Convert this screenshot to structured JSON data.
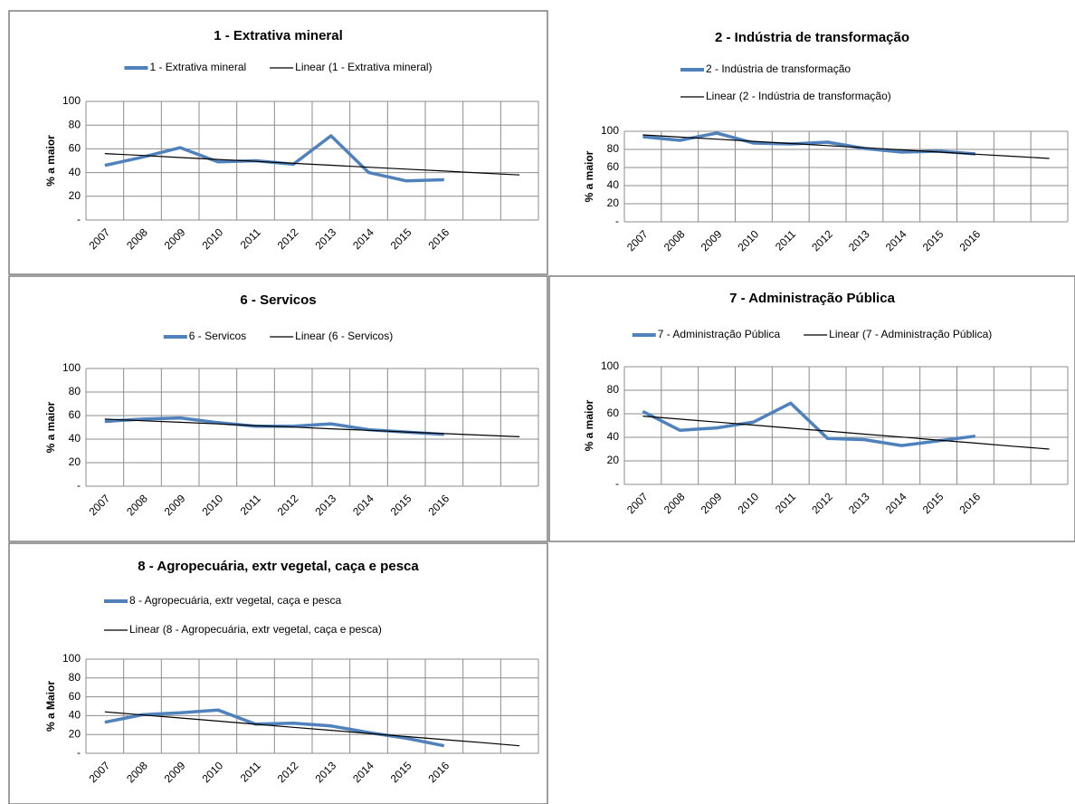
{
  "chart_data": [
    {
      "type": "line",
      "title": "1 - Extrativa mineral",
      "ylabel": "% a maior",
      "categories": [
        "2007",
        "2008",
        "2009",
        "2010",
        "2011",
        "2012",
        "2013",
        "2014",
        "2015",
        "2016",
        null,
        null
      ],
      "series": [
        {
          "name": "1 - Extrativa mineral",
          "color": "#4f81bd",
          "values": [
            46,
            53,
            61,
            49,
            50,
            47,
            71,
            40,
            33,
            34,
            null,
            null
          ]
        },
        {
          "name": "Linear (1 - Extrativa mineral)",
          "color": "#000000",
          "values": [
            56,
            54.4,
            52.7,
            51.1,
            49.5,
            47.8,
            46.2,
            44.5,
            42.9,
            41.3,
            39.6,
            38
          ]
        }
      ],
      "ylim": [
        0,
        100
      ],
      "yticks": [
        {
          "value": 0,
          "label": "-"
        },
        20,
        40,
        60,
        80,
        100
      ],
      "grid": true
    },
    {
      "type": "line",
      "title": "2 - Indústria de transformação",
      "ylabel": "% a maior",
      "categories": [
        "2007",
        "2008",
        "2009",
        "2010",
        "2011",
        "2012",
        "2013",
        "2014",
        "2015",
        "2016",
        null,
        null
      ],
      "series": [
        {
          "name": "2 - Indústria de transformação",
          "color": "#4f81bd",
          "values": [
            94,
            90,
            98,
            87,
            86,
            88,
            81,
            77,
            78,
            75,
            null,
            null
          ]
        },
        {
          "name": "Linear (2 - Indústria de transformação)",
          "color": "#000000",
          "values": [
            96,
            93.6,
            91.3,
            88.9,
            86.5,
            84.2,
            81.8,
            79.5,
            77.1,
            74.7,
            72.4,
            70
          ]
        }
      ],
      "ylim": [
        0,
        100
      ],
      "yticks": [
        {
          "value": 0,
          "label": "-"
        },
        20,
        40,
        60,
        80,
        100
      ],
      "grid": true
    },
    {
      "type": "line",
      "title": "6 - Servicos",
      "ylabel": "% a maior",
      "categories": [
        "2007",
        "2008",
        "2009",
        "2010",
        "2011",
        "2012",
        "2013",
        "2014",
        "2015",
        "2016",
        null,
        null
      ],
      "series": [
        {
          "name": "6 - Servicos",
          "color": "#4f81bd",
          "values": [
            55,
            57,
            58,
            54,
            51,
            51,
            53,
            48,
            46,
            44,
            null,
            null
          ]
        },
        {
          "name": "Linear (6 - Servicos)",
          "color": "#000000",
          "values": [
            57,
            55.6,
            54.3,
            52.9,
            51.5,
            50.2,
            48.8,
            47.5,
            46.1,
            44.7,
            43.4,
            42
          ]
        }
      ],
      "ylim": [
        0,
        100
      ],
      "yticks": [
        {
          "value": 0,
          "label": "-"
        },
        20,
        40,
        60,
        80,
        100
      ],
      "grid": true
    },
    {
      "type": "line",
      "title": "7 - Administração Pública",
      "ylabel": "% a maior",
      "categories": [
        "2007",
        "2008",
        "2009",
        "2010",
        "2011",
        "2012",
        "2013",
        "2014",
        "2015",
        "2016",
        null,
        null
      ],
      "series": [
        {
          "name": "7 - Administração Pública",
          "color": "#4f81bd",
          "values": [
            62,
            46,
            48,
            53,
            69,
            39,
            38,
            33,
            37,
            41,
            null,
            null
          ]
        },
        {
          "name": "Linear (7 - Administração Pública)",
          "color": "#000000",
          "values": [
            58,
            55.5,
            52.9,
            50.4,
            47.8,
            45.3,
            42.7,
            40.2,
            37.6,
            35.1,
            32.5,
            30
          ]
        }
      ],
      "ylim": [
        0,
        100
      ],
      "yticks": [
        {
          "value": 0,
          "label": "-"
        },
        20,
        40,
        60,
        80,
        100
      ],
      "grid": true
    },
    {
      "type": "line",
      "title": "8 - Agropecuária, extr vegetal, caça e pesca",
      "ylabel": "% a Maior",
      "categories": [
        "2007",
        "2008",
        "2009",
        "2010",
        "2011",
        "2012",
        "2013",
        "2014",
        "2015",
        "2016",
        null,
        null
      ],
      "series": [
        {
          "name": "8 - Agropecuária, extr vegetal, caça e pesca",
          "color": "#4f81bd",
          "values": [
            33,
            41,
            43,
            46,
            31,
            32,
            29,
            22,
            16,
            8,
            null,
            null
          ]
        },
        {
          "name": "Linear (8 - Agropecuária, extr vegetal, caça e pesca)",
          "color": "#000000",
          "values": [
            44,
            40.7,
            37.5,
            34.2,
            30.9,
            27.6,
            24.4,
            21.1,
            17.8,
            14.5,
            11.3,
            8
          ]
        }
      ],
      "ylim": [
        0,
        100
      ],
      "yticks": [
        {
          "value": 0,
          "label": "-"
        },
        20,
        40,
        60,
        80,
        100
      ],
      "grid": true
    }
  ]
}
